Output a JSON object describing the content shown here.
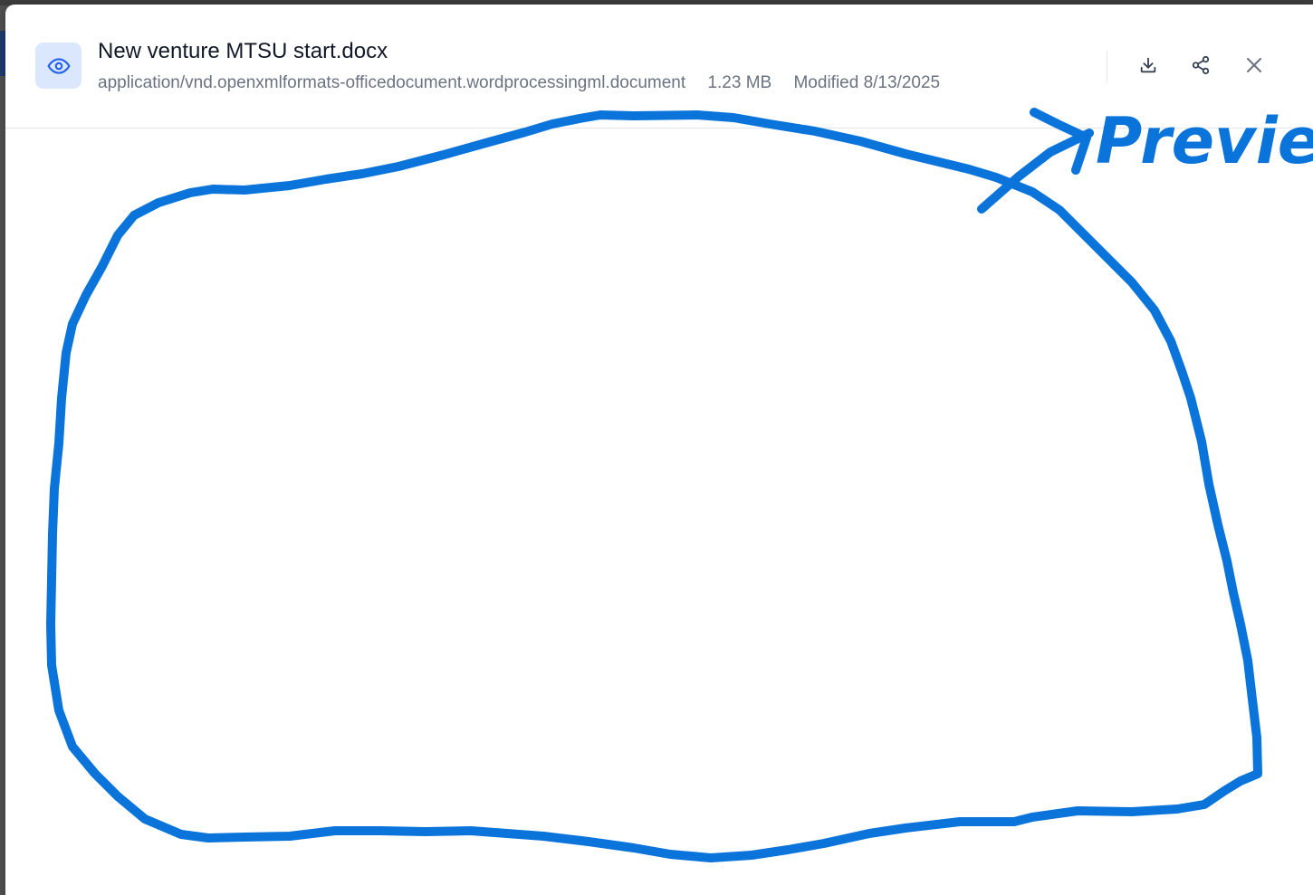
{
  "preview": {
    "title": "New venture MTSU start.docx",
    "mime_type": "application/vnd.openxmlformats-officedocument.wordprocessingml.document",
    "size": "1.23 MB",
    "modified": "Modified 8/13/2025",
    "icons": {
      "file": "eye-icon",
      "download": "download-icon",
      "share": "share-icon",
      "close": "close-icon"
    }
  },
  "annotation": {
    "label": "Preview",
    "color": "#0a74da"
  },
  "colors": {
    "accent": "#2563eb",
    "icon_bg": "#dbe7fd",
    "annotation": "#0a74da"
  }
}
